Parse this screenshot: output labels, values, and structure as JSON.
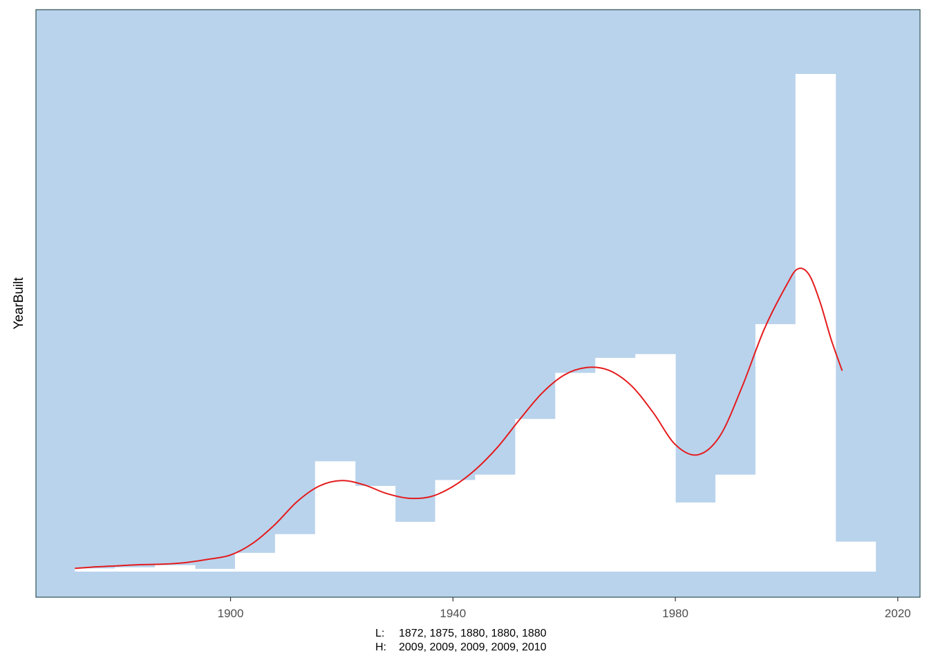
{
  "colors": {
    "panel_background": "#B9D3EC",
    "bar_fill": "#FFFFFF",
    "density_line": "#E41A1C",
    "panel_border": "#2F4F4F",
    "tick_text": "#4D4D4D"
  },
  "chart_data": {
    "type": "bar",
    "title": "",
    "xlabel": "",
    "ylabel": "YearBuilt",
    "xlim": [
      1865,
      2024
    ],
    "ylim": [
      0,
      1
    ],
    "x_ticks": [
      1900,
      1940,
      1980,
      2020
    ],
    "y_ticks_visible": false,
    "grid": false,
    "bin_width": 7.2,
    "bins": [
      {
        "start": 1872.0,
        "end": 1879.2,
        "density": 0.006
      },
      {
        "start": 1879.2,
        "end": 1886.4,
        "density": 0.008
      },
      {
        "start": 1886.4,
        "end": 1893.6,
        "density": 0.012
      },
      {
        "start": 1893.6,
        "end": 1900.8,
        "density": 0.005
      },
      {
        "start": 1900.8,
        "end": 1908.0,
        "density": 0.035
      },
      {
        "start": 1908.0,
        "end": 1915.2,
        "density": 0.07
      },
      {
        "start": 1915.2,
        "end": 1922.4,
        "density": 0.206
      },
      {
        "start": 1922.4,
        "end": 1929.6,
        "density": 0.16
      },
      {
        "start": 1929.6,
        "end": 1936.8,
        "density": 0.093
      },
      {
        "start": 1936.8,
        "end": 1944.0,
        "density": 0.171
      },
      {
        "start": 1944.0,
        "end": 1951.2,
        "density": 0.181
      },
      {
        "start": 1951.2,
        "end": 1958.4,
        "density": 0.285
      },
      {
        "start": 1958.4,
        "end": 1965.6,
        "density": 0.371
      },
      {
        "start": 1965.6,
        "end": 1972.8,
        "density": 0.399
      },
      {
        "start": 1972.8,
        "end": 1980.0,
        "density": 0.406
      },
      {
        "start": 1980.0,
        "end": 1987.2,
        "density": 0.129
      },
      {
        "start": 1987.2,
        "end": 1994.4,
        "density": 0.181
      },
      {
        "start": 1994.4,
        "end": 2001.6,
        "density": 0.462
      },
      {
        "start": 2001.6,
        "end": 2008.8,
        "density": 0.929
      },
      {
        "start": 2008.8,
        "end": 2016.0,
        "density": 0.056
      }
    ],
    "density_curve": {
      "x": [
        1872,
        1876,
        1880,
        1884,
        1888,
        1892,
        1896,
        1900,
        1904,
        1908,
        1912,
        1916,
        1920,
        1924,
        1928,
        1932,
        1936,
        1940,
        1944,
        1948,
        1952,
        1956,
        1960,
        1964,
        1968,
        1972,
        1976,
        1980,
        1984,
        1988,
        1992,
        1996,
        2000,
        2002,
        2004,
        2006,
        2008,
        2010
      ],
      "y": [
        0.006,
        0.009,
        0.011,
        0.013,
        0.014,
        0.017,
        0.023,
        0.031,
        0.053,
        0.088,
        0.131,
        0.16,
        0.17,
        0.162,
        0.146,
        0.137,
        0.14,
        0.159,
        0.19,
        0.232,
        0.284,
        0.333,
        0.367,
        0.381,
        0.376,
        0.348,
        0.297,
        0.237,
        0.218,
        0.253,
        0.345,
        0.453,
        0.535,
        0.565,
        0.555,
        0.504,
        0.434,
        0.375
      ]
    },
    "footer_lines": [
      {
        "prefix": "L:",
        "values": "1872, 1875, 1880, 1880, 1880"
      },
      {
        "prefix": "H:",
        "values": "2009, 2009, 2009, 2009, 2010"
      }
    ]
  }
}
